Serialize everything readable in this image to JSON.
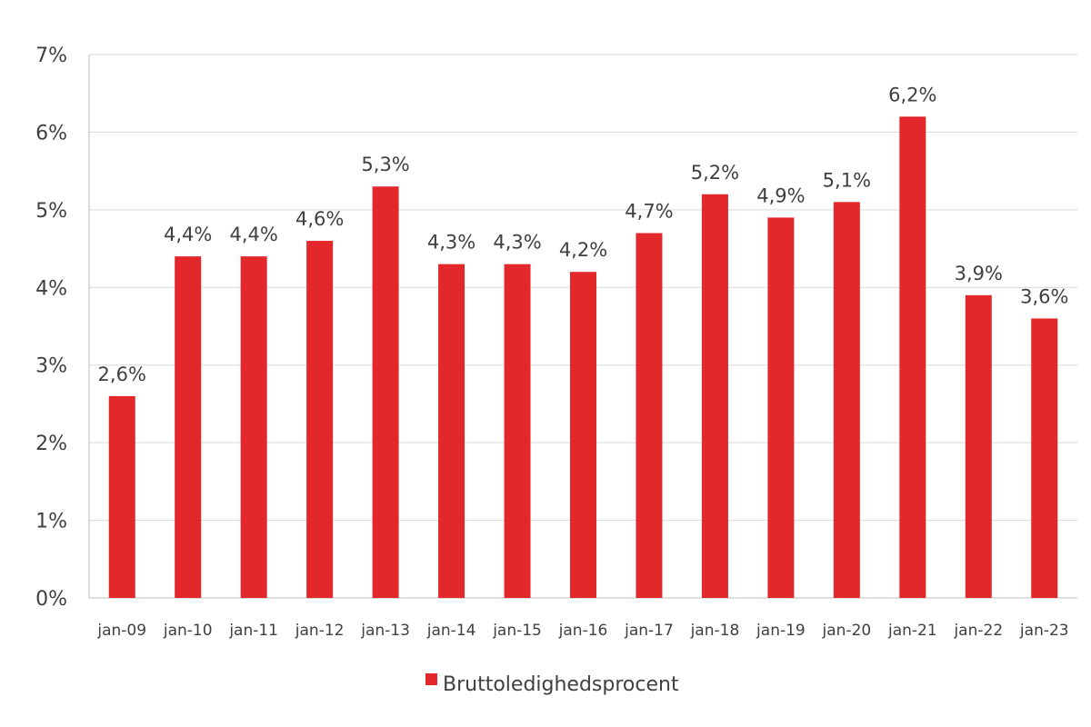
{
  "chart_data": {
    "type": "bar",
    "title": "",
    "xlabel": "",
    "ylabel": "",
    "categories": [
      "jan-09",
      "jan-10",
      "jan-11",
      "jan-12",
      "jan-13",
      "jan-14",
      "jan-15",
      "jan-16",
      "jan-17",
      "jan-18",
      "jan-19",
      "jan-20",
      "jan-21",
      "jan-22",
      "jan-23"
    ],
    "series": [
      {
        "name": "Bruttoledighedsprocent",
        "color": "#E3282C",
        "values": [
          2.6,
          4.4,
          4.4,
          4.6,
          5.3,
          4.3,
          4.3,
          4.2,
          4.7,
          5.2,
          4.9,
          5.1,
          6.2,
          3.9,
          3.6
        ],
        "data_labels": [
          "2,6%",
          "4,4%",
          "4,4%",
          "4,6%",
          "5,3%",
          "4,3%",
          "4,3%",
          "4,2%",
          "4,7%",
          "5,2%",
          "4,9%",
          "5,1%",
          "6,2%",
          "3,9%",
          "3,6%"
        ]
      }
    ],
    "ylim": [
      0,
      7
    ],
    "yticks": [
      0,
      1,
      2,
      3,
      4,
      5,
      6,
      7
    ],
    "ytick_labels": [
      "0%",
      "1%",
      "2%",
      "3%",
      "4%",
      "5%",
      "6%",
      "7%"
    ],
    "grid": true,
    "legend_position": "bottom-center"
  },
  "colors": {
    "bar": "#E3282C",
    "grid": "#D9D9D9",
    "axis": "#BFBFBF",
    "text": "#404040"
  }
}
